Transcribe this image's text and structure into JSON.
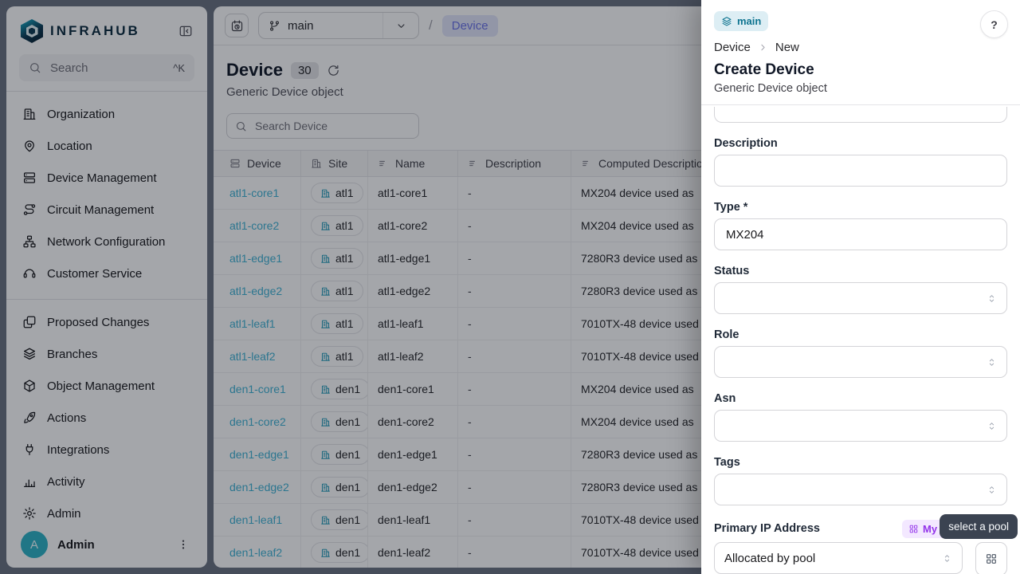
{
  "colors": {
    "teal": "#1193b4",
    "teal_dark": "#0e7490",
    "link": "#42b3d5",
    "indigo": "#6d74e8",
    "purple": "#9333ea",
    "tooltip_bg": "#3b4351",
    "avatar": "#2fb3c7"
  },
  "sidebar": {
    "logo_text": "INFRAHUB",
    "search": {
      "placeholder": "Search",
      "shortcut": "^K"
    },
    "groups": [
      {
        "items": [
          {
            "label": "Organization",
            "icon": "building-icon"
          },
          {
            "label": "Location",
            "icon": "map-pin-icon"
          },
          {
            "label": "Device Management",
            "icon": "server-icon"
          },
          {
            "label": "Circuit Management",
            "icon": "route-icon"
          },
          {
            "label": "Network Configuration",
            "icon": "hierarchy-icon"
          },
          {
            "label": "Customer Service",
            "icon": "customer-service-icon"
          }
        ]
      },
      {
        "items": [
          {
            "label": "Proposed Changes",
            "icon": "copy-diff-icon"
          },
          {
            "label": "Branches",
            "icon": "layers-icon"
          },
          {
            "label": "Object Management",
            "icon": "cube-icon"
          },
          {
            "label": "Actions",
            "icon": "rocket-icon"
          },
          {
            "label": "Integrations",
            "icon": "plug-icon"
          },
          {
            "label": "Activity",
            "icon": "bar-chart-icon"
          },
          {
            "label": "Admin",
            "icon": "gear-icon"
          }
        ]
      }
    ],
    "user": {
      "name": "Admin",
      "avatar_initial": "A"
    }
  },
  "topbar": {
    "branch": "main",
    "slash": "/",
    "breadcrumb_object": "Device"
  },
  "page": {
    "title": "Device",
    "count": "30",
    "subtitle": "Generic Device object",
    "search_placeholder": "Search Device"
  },
  "table": {
    "columns": [
      {
        "label": "Device",
        "icon": "server-icon"
      },
      {
        "label": "Site",
        "icon": "building-icon"
      },
      {
        "label": "Name",
        "icon": "lines-icon"
      },
      {
        "label": "Description",
        "icon": "lines-icon"
      },
      {
        "label": "Computed Description",
        "icon": "lines-icon"
      }
    ],
    "rows": [
      {
        "device": "atl1-core1",
        "site": "atl1",
        "name": "atl1-core1",
        "description": "-",
        "computed": "MX204 device used as"
      },
      {
        "device": "atl1-core2",
        "site": "atl1",
        "name": "atl1-core2",
        "description": "-",
        "computed": "MX204 device used as"
      },
      {
        "device": "atl1-edge1",
        "site": "atl1",
        "name": "atl1-edge1",
        "description": "-",
        "computed": "7280R3 device used as"
      },
      {
        "device": "atl1-edge2",
        "site": "atl1",
        "name": "atl1-edge2",
        "description": "-",
        "computed": "7280R3 device used as"
      },
      {
        "device": "atl1-leaf1",
        "site": "atl1",
        "name": "atl1-leaf1",
        "description": "-",
        "computed": "7010TX-48 device used"
      },
      {
        "device": "atl1-leaf2",
        "site": "atl1",
        "name": "atl1-leaf2",
        "description": "-",
        "computed": "7010TX-48 device used"
      },
      {
        "device": "den1-core1",
        "site": "den1",
        "name": "den1-core1",
        "description": "-",
        "computed": "MX204 device used as"
      },
      {
        "device": "den1-core2",
        "site": "den1",
        "name": "den1-core2",
        "description": "-",
        "computed": "MX204 device used as"
      },
      {
        "device": "den1-edge1",
        "site": "den1",
        "name": "den1-edge1",
        "description": "-",
        "computed": "7280R3 device used as"
      },
      {
        "device": "den1-edge2",
        "site": "den1",
        "name": "den1-edge2",
        "description": "-",
        "computed": "7280R3 device used as"
      },
      {
        "device": "den1-leaf1",
        "site": "den1",
        "name": "den1-leaf1",
        "description": "-",
        "computed": "7010TX-48 device used"
      },
      {
        "device": "den1-leaf2",
        "site": "den1",
        "name": "den1-leaf2",
        "description": "-",
        "computed": "7010TX-48 device used"
      }
    ]
  },
  "drawer": {
    "branch_badge": "main",
    "help_label": "?",
    "crumb1": "Device",
    "crumb2": "New",
    "title": "Create Device",
    "subtitle": "Generic Device object",
    "fields": [
      {
        "label": "Description",
        "type": "input",
        "value": ""
      },
      {
        "label": "Type *",
        "type": "input",
        "value": "MX204"
      },
      {
        "label": "Status",
        "type": "select",
        "value": ""
      },
      {
        "label": "Role",
        "type": "select",
        "value": ""
      },
      {
        "label": "Asn",
        "type": "select",
        "value": ""
      },
      {
        "label": "Tags",
        "type": "select",
        "value": ""
      }
    ],
    "primary_ip": {
      "label": "Primary IP Address",
      "badge": "My IP",
      "select_value": "Allocated by pool",
      "tooltip": "select a pool"
    }
  }
}
